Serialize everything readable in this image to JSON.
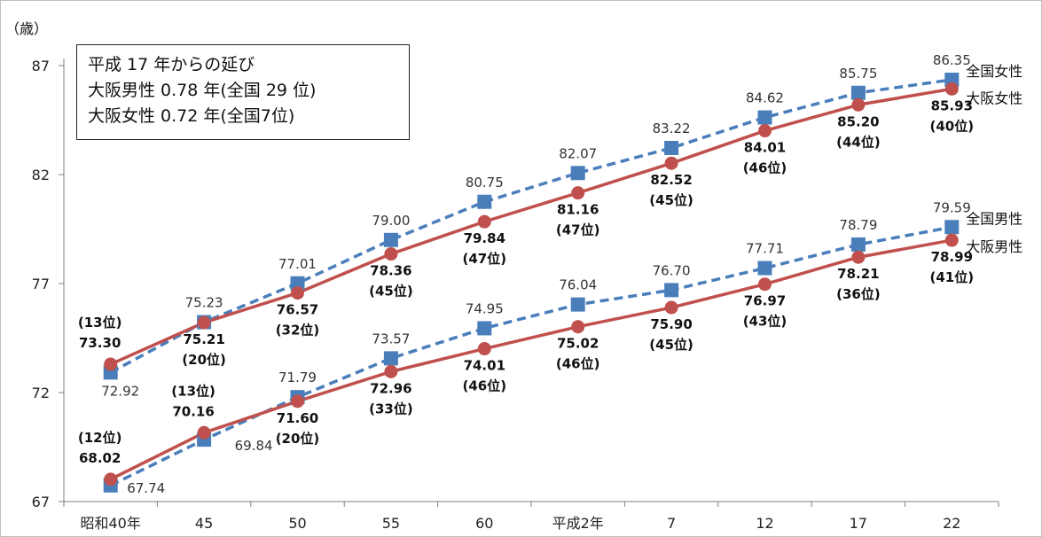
{
  "chart_data": {
    "type": "line",
    "y_unit": "（歳）",
    "ylim": [
      67,
      87
    ],
    "yticks": [
      67,
      72,
      77,
      82,
      87
    ],
    "categories": [
      "昭和40年",
      "45",
      "50",
      "55",
      "60",
      "平成2年",
      "7",
      "12",
      "17",
      "22"
    ],
    "note": [
      "平成 17 年からの延び",
      "大阪男性  0.78 年(全国 29 位)",
      "大阪女性  0.72 年(全国7位)"
    ],
    "series": [
      {
        "name": "全国女性",
        "group": "female",
        "style": "dashed-square",
        "color": "#4a7ebb",
        "values": [
          72.92,
          75.23,
          77.01,
          79.0,
          80.75,
          82.07,
          83.22,
          84.62,
          85.75,
          86.35
        ],
        "labels": [
          "72.92",
          "75.23",
          "77.01",
          "79.00",
          "80.75",
          "82.07",
          "83.22",
          "84.62",
          "85.75",
          "86.35"
        ]
      },
      {
        "name": "大阪女性",
        "group": "female",
        "style": "solid-circle",
        "color": "#c0504d",
        "values": [
          73.3,
          75.21,
          76.57,
          78.36,
          79.84,
          81.16,
          82.52,
          84.01,
          85.2,
          85.93
        ],
        "labels": [
          "73.30",
          "75.21",
          "76.57",
          "78.36",
          "79.84",
          "81.16",
          "82.52",
          "84.01",
          "85.20",
          "85.93"
        ],
        "ranks": [
          "(13位)",
          "(20位)",
          "(32位)",
          "(45位)",
          "(47位)",
          "(47位)",
          "(45位)",
          "(46位)",
          "(44位)",
          "(40位)"
        ]
      },
      {
        "name": "全国男性",
        "group": "male",
        "style": "dashed-square",
        "color": "#4a7ebb",
        "values": [
          67.74,
          69.84,
          71.79,
          73.57,
          74.95,
          76.04,
          76.7,
          77.71,
          78.79,
          79.59
        ],
        "labels": [
          "67.74",
          "69.84",
          "71.79",
          "73.57",
          "74.95",
          "76.04",
          "76.70",
          "77.71",
          "78.79",
          "79.59"
        ]
      },
      {
        "name": "大阪男性",
        "group": "male",
        "style": "solid-circle",
        "color": "#c0504d",
        "values": [
          68.02,
          70.16,
          71.6,
          72.96,
          74.01,
          75.02,
          75.9,
          76.97,
          78.21,
          78.99
        ],
        "labels": [
          "68.02",
          "70.16",
          "71.60",
          "72.96",
          "74.01",
          "75.02",
          "75.90",
          "76.97",
          "78.21",
          "78.99"
        ],
        "ranks": [
          "(12位)",
          "(13位)",
          "(20位)",
          "(33位)",
          "(46位)",
          "(46位)",
          "(45位)",
          "(43位)",
          "(36位)",
          "(41位)"
        ]
      }
    ]
  }
}
